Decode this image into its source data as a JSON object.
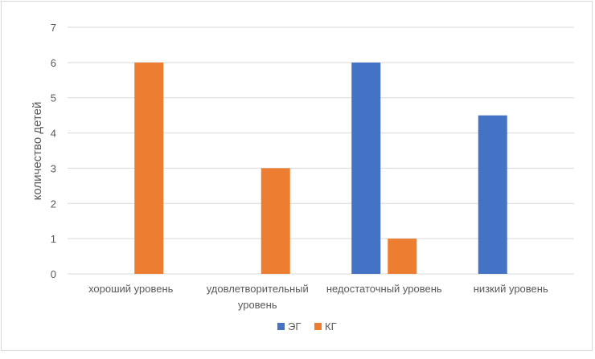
{
  "chart_data": {
    "type": "bar",
    "title": "",
    "xlabel": "",
    "ylabel": "количество детей",
    "ylim": [
      0,
      7
    ],
    "yticks": [
      0,
      1,
      2,
      3,
      4,
      5,
      6,
      7
    ],
    "grid": true,
    "legend_position": "bottom",
    "categories": [
      [
        "хороший уровень"
      ],
      [
        "удовлетворительный",
        "уровень"
      ],
      [
        "недостаточный уровень"
      ],
      [
        "низкий уровень"
      ]
    ],
    "series": [
      {
        "name": "ЭГ",
        "color": "#4472C4",
        "values": [
          0,
          0,
          6,
          4.5
        ]
      },
      {
        "name": "КГ",
        "color": "#ED7D31",
        "values": [
          6,
          3,
          1,
          0
        ]
      }
    ]
  }
}
